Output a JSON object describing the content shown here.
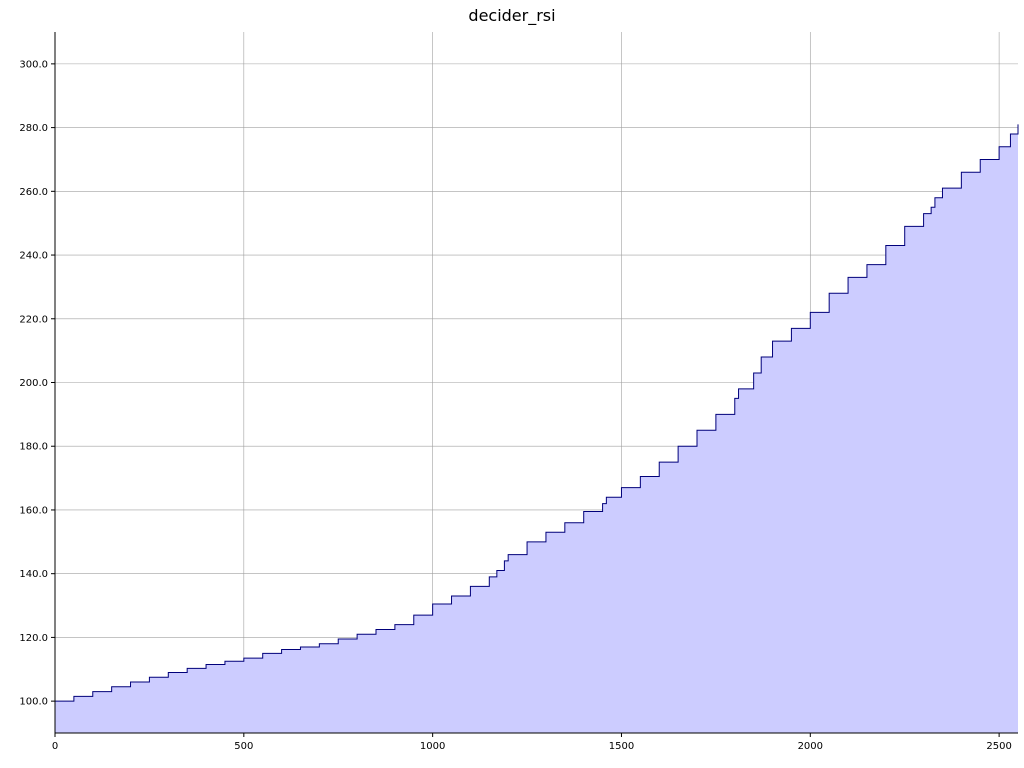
{
  "chart_data": {
    "type": "area",
    "title": "decider_rsi",
    "xlabel": "",
    "ylabel": "",
    "xlim": [
      0,
      2550
    ],
    "ylim": [
      90,
      310
    ],
    "grid": true,
    "x_ticks": [
      0,
      500,
      1000,
      1500,
      2000,
      2500
    ],
    "x_tick_labels": [
      "0",
      "500",
      "1000",
      "1500",
      "2000",
      "2500"
    ],
    "y_ticks": [
      100,
      120,
      140,
      160,
      180,
      200,
      220,
      240,
      260,
      280,
      300
    ],
    "y_tick_labels": [
      "100.0",
      "120.0",
      "140.0",
      "160.0",
      "180.0",
      "200.0",
      "220.0",
      "240.0",
      "260.0",
      "280.0",
      "300.0"
    ],
    "colors": {
      "fill": "#ccccff",
      "line": "#00007a",
      "grid": "#a0a0a0"
    },
    "series": [
      {
        "x": [
          0,
          50,
          100,
          150,
          200,
          250,
          300,
          350,
          400,
          450,
          500,
          550,
          600,
          650,
          700,
          750,
          800,
          850,
          900,
          950,
          1000,
          1050,
          1100,
          1150,
          1170,
          1190,
          1200,
          1250,
          1300,
          1350,
          1400,
          1450,
          1460,
          1500,
          1550,
          1600,
          1650,
          1700,
          1750,
          1800,
          1810,
          1850,
          1870,
          1900,
          1950,
          2000,
          2050,
          2100,
          2150,
          2200,
          2250,
          2300,
          2320,
          2330,
          2350,
          2400,
          2450,
          2500,
          2530,
          2550
        ],
        "y": [
          100,
          101.5,
          103,
          104.5,
          106,
          107.5,
          109,
          110.3,
          111.5,
          112.5,
          113.5,
          115,
          116.2,
          117,
          118,
          119.5,
          121,
          122.5,
          124,
          127,
          130.5,
          133,
          136,
          139,
          141,
          144,
          146,
          150,
          153,
          156,
          159.5,
          162,
          164,
          167,
          170.5,
          175,
          180,
          185,
          190,
          195,
          198,
          203,
          208,
          213,
          217,
          222,
          228,
          233,
          237,
          243,
          249,
          253,
          255,
          258,
          261,
          266,
          270,
          274,
          278,
          281
        ]
      }
    ]
  }
}
